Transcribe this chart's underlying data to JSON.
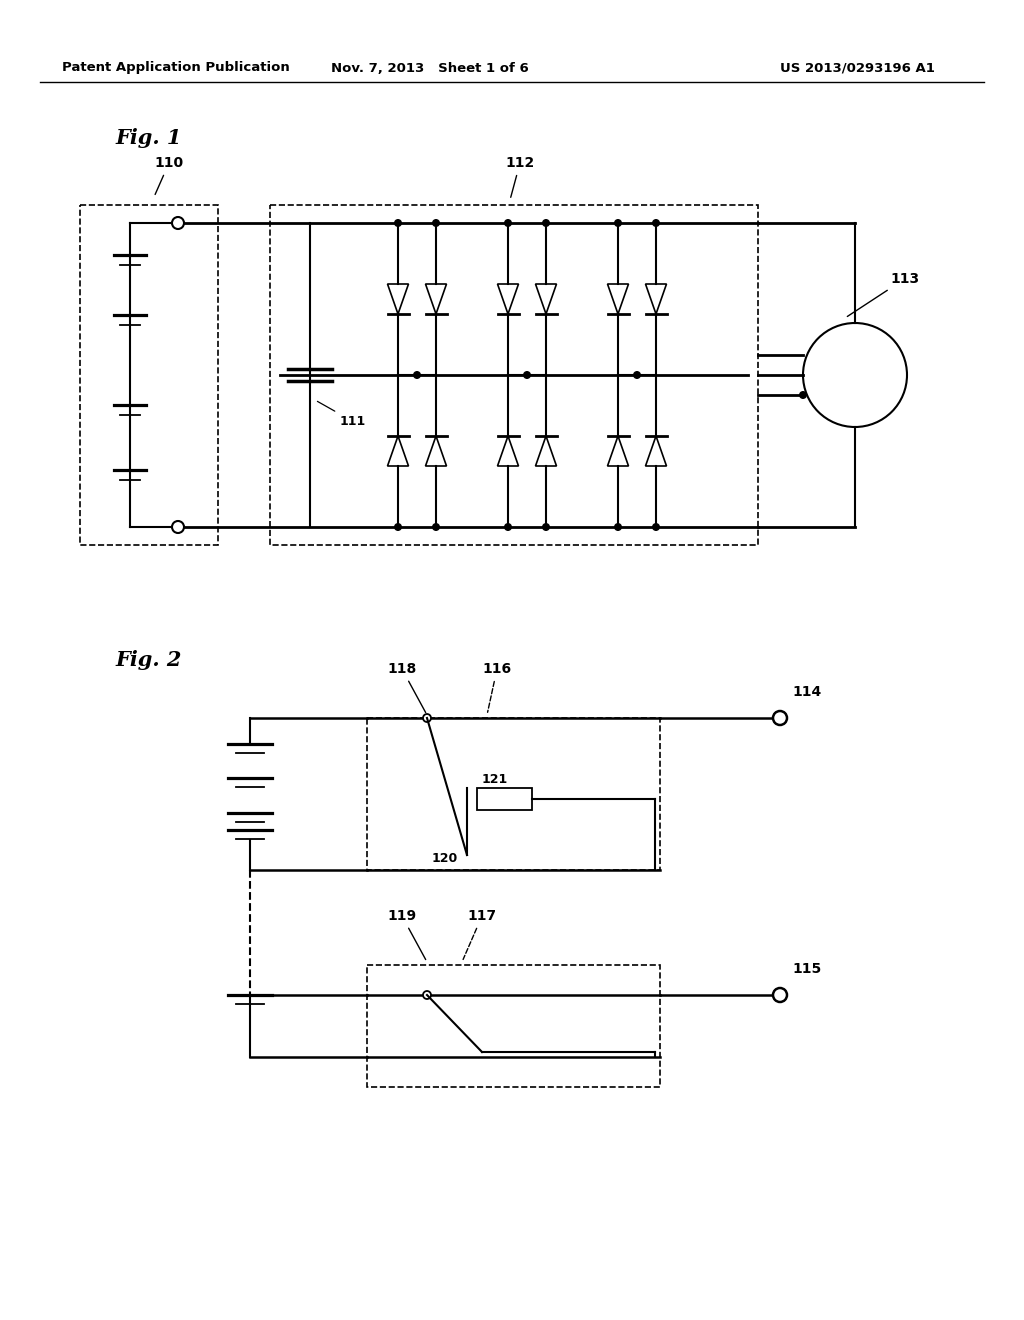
{
  "background_color": "#ffffff",
  "header_left": "Patent Application Publication",
  "header_mid": "Nov. 7, 2013   Sheet 1 of 6",
  "header_right": "US 2013/0293196 A1"
}
